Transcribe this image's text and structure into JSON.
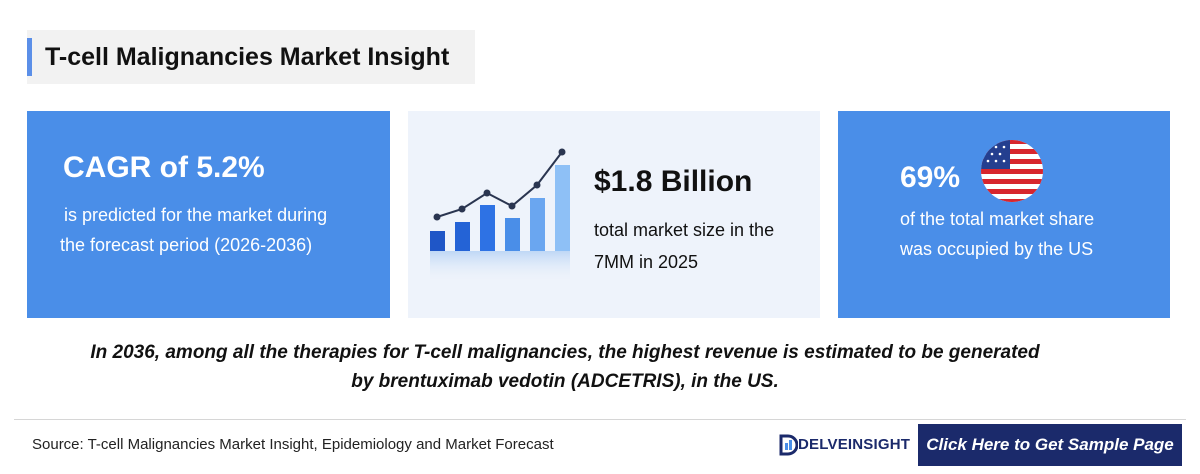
{
  "header": {
    "title": "T-cell Malignancies Market Insight"
  },
  "cards": [
    {
      "headline": "CAGR of 5.2%",
      "lines": [
        "is predicted for the market during",
        "the forecast period (2026-2036)"
      ]
    },
    {
      "headline": "$1.8 Billion",
      "lines": [
        "total market size in the",
        "7MM in 2025"
      ]
    },
    {
      "headline": "69%",
      "lines": [
        "of the total market share",
        "was occupied by the US"
      ]
    }
  ],
  "highlight": {
    "lines": [
      "In 2036, among all the therapies for T-cell malignancies, the highest revenue is estimated to be generated",
      "by brentuximab vedotin (ADCETRIS), in the US."
    ]
  },
  "footer": {
    "source": "Source: T-cell Malignancies Market Insight, Epidemiology and Market Forecast",
    "logo": "DELVEINSIGHT",
    "button": "Click Here to Get Sample Page"
  }
}
